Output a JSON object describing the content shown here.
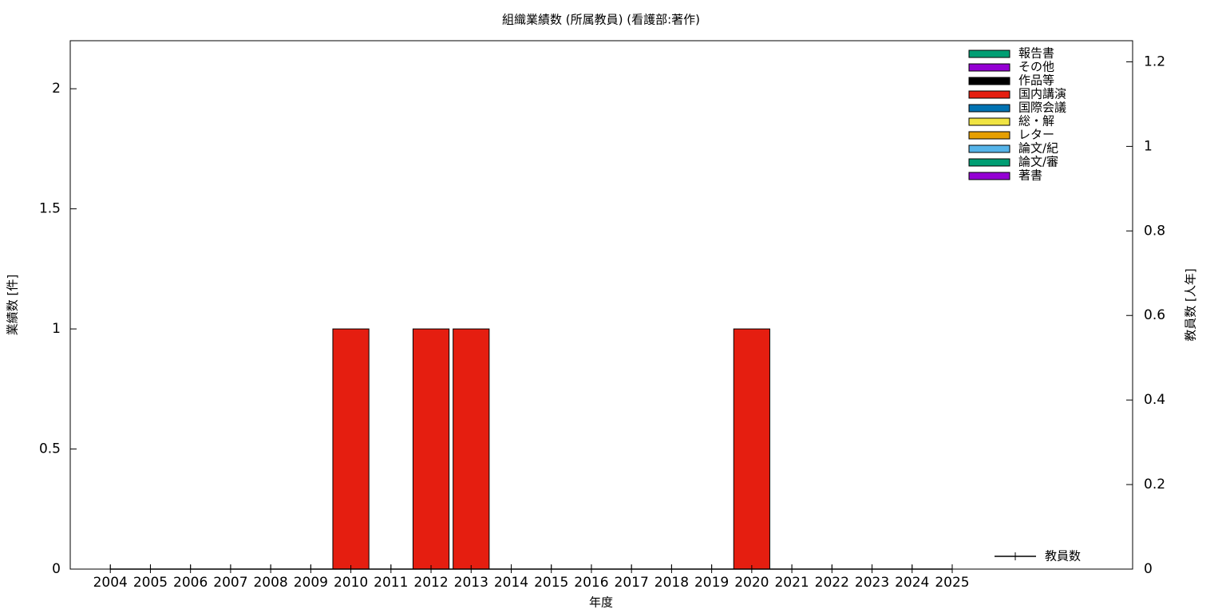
{
  "chart_data": {
    "type": "bar",
    "title": "組織業績数 (所属教員) (看護部:著作)",
    "x_label": "年度",
    "y_label": "業績数 [件]",
    "y2_label": "教員数 [人年]",
    "stacked": true,
    "categories": [
      "2004",
      "2005",
      "2006",
      "2007",
      "2008",
      "2009",
      "2010",
      "2011",
      "2012",
      "2013",
      "2014",
      "2015",
      "2016",
      "2017",
      "2018",
      "2019",
      "2020",
      "2021",
      "2022",
      "2023",
      "2024",
      "2025"
    ],
    "ylim": [
      0,
      2.2
    ],
    "yticks": [
      0,
      0.5,
      1,
      1.5,
      2
    ],
    "y2lim": [
      0,
      1.25
    ],
    "y2ticks": [
      0,
      0.2,
      0.4,
      0.6,
      0.8,
      1,
      1.2
    ],
    "legend": "upper right",
    "series": [
      {
        "name": "報告書",
        "color": "#009e73",
        "values": [
          0,
          0,
          0,
          0,
          0,
          0,
          0,
          0,
          0,
          0,
          0,
          0,
          0,
          0,
          0,
          0,
          0,
          0,
          0,
          0,
          0,
          0
        ]
      },
      {
        "name": "その他",
        "color": "#9400d3",
        "values": [
          0,
          0,
          0,
          0,
          0,
          0,
          0,
          0,
          0,
          0,
          0,
          0,
          0,
          0,
          0,
          0,
          0,
          0,
          0,
          0,
          0,
          0
        ]
      },
      {
        "name": "作品等",
        "color": "#000000",
        "values": [
          0,
          0,
          0,
          0,
          0,
          0,
          0,
          0,
          0,
          0,
          0,
          0,
          0,
          0,
          0,
          0,
          0,
          0,
          0,
          0,
          0,
          0
        ]
      },
      {
        "name": "国内講演",
        "color": "#e51e10",
        "values": [
          0,
          0,
          0,
          0,
          0,
          0,
          1,
          0,
          1,
          1,
          0,
          0,
          0,
          0,
          0,
          0,
          1,
          0,
          0,
          0,
          0,
          0
        ]
      },
      {
        "name": "国際会議",
        "color": "#0072b2",
        "values": [
          0,
          0,
          0,
          0,
          0,
          0,
          0,
          0,
          0,
          0,
          0,
          0,
          0,
          0,
          0,
          0,
          0,
          0,
          0,
          0,
          0,
          0
        ]
      },
      {
        "name": "総・解",
        "color": "#f0e442",
        "values": [
          0,
          0,
          0,
          0,
          0,
          0,
          0,
          0,
          0,
          0,
          0,
          0,
          0,
          0,
          0,
          0,
          0,
          0,
          0,
          0,
          0,
          0
        ]
      },
      {
        "name": "レター",
        "color": "#e69f00",
        "values": [
          0,
          0,
          0,
          0,
          0,
          0,
          0,
          0,
          0,
          0,
          0,
          0,
          0,
          0,
          0,
          0,
          0,
          0,
          0,
          0,
          0,
          0
        ]
      },
      {
        "name": "論文/紀",
        "color": "#56b4e9",
        "values": [
          0,
          0,
          0,
          0,
          0,
          0,
          0,
          0,
          0,
          0,
          0,
          0,
          0,
          0,
          0,
          0,
          0,
          0,
          0,
          0,
          0,
          0
        ]
      },
      {
        "name": "論文/審",
        "color": "#009e73",
        "values": [
          0,
          0,
          0,
          0,
          0,
          0,
          0,
          0,
          0,
          0,
          0,
          0,
          0,
          0,
          0,
          0,
          0,
          0,
          0,
          0,
          0,
          0
        ]
      },
      {
        "name": "著書",
        "color": "#9400d3",
        "values": [
          0,
          0,
          0,
          0,
          0,
          0,
          0,
          0,
          0,
          0,
          0,
          0,
          0,
          0,
          0,
          0,
          0,
          0,
          0,
          0,
          0,
          0
        ]
      }
    ],
    "line_series": {
      "name": "教員数",
      "color": "#000000",
      "axis": "y2",
      "values": [
        0,
        0,
        0,
        0,
        0,
        0,
        0,
        0,
        0,
        0,
        0,
        0,
        0,
        0,
        0,
        0,
        0,
        0,
        0,
        0,
        0,
        0
      ]
    }
  }
}
